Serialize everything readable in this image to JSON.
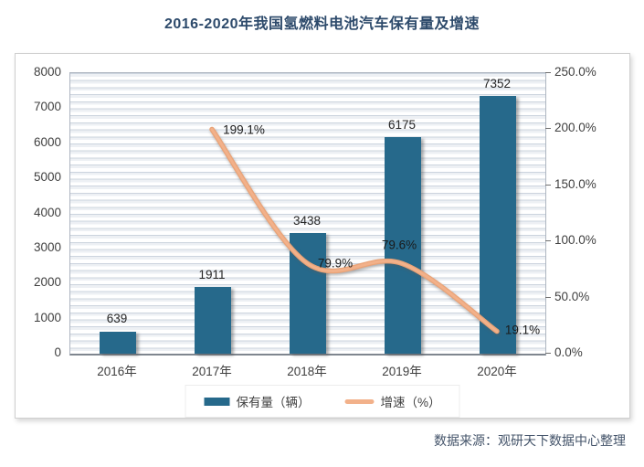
{
  "page": {
    "title": "2016-2020年我国氢燃料电池汽车保有量及增速",
    "source_note": "数据来源：观研天下数据中心整理"
  },
  "colors": {
    "bar": "#26698b",
    "line": "#f2b18a",
    "line_edge": "#eaa377",
    "title_text": "#2d4a6b",
    "source_text": "#44546a",
    "axis_text": "#3f3f3f"
  },
  "chart_data": {
    "type": "bar",
    "subtype": "combo-bar-line-dual-axis",
    "title": "2016-2020年我国氢燃料电池汽车保有量及增速",
    "categories": [
      "2016年",
      "2017年",
      "2018年",
      "2019年",
      "2020年"
    ],
    "series": [
      {
        "name": "保有量（辆）",
        "type": "bar",
        "axis": "left",
        "color": "#26698b",
        "values": [
          639,
          1911,
          3438,
          6175,
          7352
        ],
        "data_labels": [
          "639",
          "1911",
          "3438",
          "6175",
          "7352"
        ]
      },
      {
        "name": "增速（%）",
        "type": "line",
        "axis": "right",
        "color": "#f2b18a",
        "values": [
          null,
          199.1,
          79.9,
          79.6,
          19.1
        ],
        "data_labels": [
          "",
          "199.1%",
          "79.9%",
          "79.6%",
          "19.1%"
        ]
      }
    ],
    "left_axis": {
      "min": 0,
      "max": 8000,
      "step": 1000,
      "ticks": [
        "0",
        "1000",
        "2000",
        "3000",
        "4000",
        "5000",
        "6000",
        "7000",
        "8000"
      ]
    },
    "right_axis": {
      "min": 0,
      "max": 250,
      "step": 50,
      "ticks": [
        "0.0%",
        "50.0%",
        "100.0%",
        "150.0%",
        "200.0%",
        "250.0%"
      ]
    },
    "legend": {
      "position": "bottom",
      "entries": [
        "保有量（辆）",
        "增速（%）"
      ]
    },
    "grid": "minor horizontal gridline stripes"
  }
}
